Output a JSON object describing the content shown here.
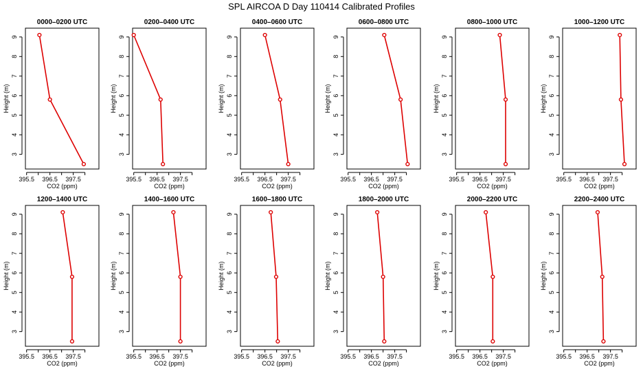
{
  "figure": {
    "title": "SPL AIRCOA D  Day 110414  Calibrated Profiles",
    "colors": {
      "line": "#dd0000",
      "axis": "#000000",
      "background": "#ffffff"
    }
  },
  "chart_data": [
    {
      "type": "line",
      "title": "0000–0200 UTC",
      "xlabel": "CO2 (ppm)",
      "ylabel": "Height (m)",
      "xticks": [
        395.5,
        396.5,
        397.5
      ],
      "yticks": [
        3,
        4,
        5,
        6,
        7,
        8,
        9
      ],
      "x": [
        397.95,
        396.5,
        396.05
      ],
      "y": [
        2.5,
        5.8,
        9.1
      ]
    },
    {
      "type": "line",
      "title": "0200–0400 UTC",
      "xlabel": "CO2 (ppm)",
      "ylabel": "Height (m)",
      "xticks": [
        395.5,
        396.5,
        397.5
      ],
      "yticks": [
        3,
        4,
        5,
        6,
        7,
        8,
        9
      ],
      "x": [
        396.75,
        396.65,
        395.5
      ],
      "y": [
        2.5,
        5.8,
        9.1
      ]
    },
    {
      "type": "line",
      "title": "0400–0600 UTC",
      "xlabel": "CO2 (ppm)",
      "ylabel": "Height (m)",
      "xticks": [
        395.5,
        396.5,
        397.5
      ],
      "yticks": [
        3,
        4,
        5,
        6,
        7,
        8,
        9
      ],
      "x": [
        397.5,
        397.15,
        396.5
      ],
      "y": [
        2.5,
        5.8,
        9.1
      ]
    },
    {
      "type": "line",
      "title": "0600–0800 UTC",
      "xlabel": "CO2 (ppm)",
      "ylabel": "Height (m)",
      "xticks": [
        395.5,
        396.5,
        397.5
      ],
      "yticks": [
        3,
        4,
        5,
        6,
        7,
        8,
        9
      ],
      "x": [
        398.05,
        397.75,
        397.05
      ],
      "y": [
        2.5,
        5.8,
        9.1
      ]
    },
    {
      "type": "line",
      "title": "0800–1000 UTC",
      "xlabel": "CO2 (ppm)",
      "ylabel": "Height (m)",
      "xticks": [
        395.5,
        396.5,
        397.5
      ],
      "yticks": [
        3,
        4,
        5,
        6,
        7,
        8,
        9
      ],
      "x": [
        397.6,
        397.6,
        397.35
      ],
      "y": [
        2.5,
        5.8,
        9.1
      ]
    },
    {
      "type": "line",
      "title": "1000–1200 UTC",
      "xlabel": "CO2 (ppm)",
      "ylabel": "Height (m)",
      "xticks": [
        395.5,
        396.5,
        397.5
      ],
      "yticks": [
        3,
        4,
        5,
        6,
        7,
        8,
        9
      ],
      "x": [
        398.1,
        397.95,
        397.9
      ],
      "y": [
        2.5,
        5.8,
        9.1
      ]
    },
    {
      "type": "line",
      "title": "1200–1400 UTC",
      "xlabel": "CO2 (ppm)",
      "ylabel": "Height (m)",
      "xticks": [
        395.5,
        396.5,
        397.5
      ],
      "yticks": [
        3,
        4,
        5,
        6,
        7,
        8,
        9
      ],
      "x": [
        397.45,
        397.45,
        397.05
      ],
      "y": [
        2.5,
        5.8,
        9.1
      ]
    },
    {
      "type": "line",
      "title": "1400–1600 UTC",
      "xlabel": "CO2 (ppm)",
      "ylabel": "Height (m)",
      "xticks": [
        395.5,
        396.5,
        397.5
      ],
      "yticks": [
        3,
        4,
        5,
        6,
        7,
        8,
        9
      ],
      "x": [
        397.5,
        397.5,
        397.2
      ],
      "y": [
        2.5,
        5.8,
        9.1
      ]
    },
    {
      "type": "line",
      "title": "1600–1800 UTC",
      "xlabel": "CO2 (ppm)",
      "ylabel": "Height (m)",
      "xticks": [
        395.5,
        396.5,
        397.5
      ],
      "yticks": [
        3,
        4,
        5,
        6,
        7,
        8,
        9
      ],
      "x": [
        397.05,
        396.98,
        396.75
      ],
      "y": [
        2.5,
        5.8,
        9.1
      ]
    },
    {
      "type": "line",
      "title": "1800–2000 UTC",
      "xlabel": "CO2 (ppm)",
      "ylabel": "Height (m)",
      "xticks": [
        395.5,
        396.5,
        397.5
      ],
      "yticks": [
        3,
        4,
        5,
        6,
        7,
        8,
        9
      ],
      "x": [
        397.05,
        397.0,
        396.75
      ],
      "y": [
        2.5,
        5.8,
        9.1
      ]
    },
    {
      "type": "line",
      "title": "2000–2200 UTC",
      "xlabel": "CO2 (ppm)",
      "ylabel": "Height (m)",
      "xticks": [
        395.5,
        396.5,
        397.5
      ],
      "yticks": [
        3,
        4,
        5,
        6,
        7,
        8,
        9
      ],
      "x": [
        397.05,
        397.05,
        396.75
      ],
      "y": [
        2.5,
        5.8,
        9.1
      ]
    },
    {
      "type": "line",
      "title": "2200–2400 UTC",
      "xlabel": "CO2 (ppm)",
      "ylabel": "Height (m)",
      "xticks": [
        395.5,
        396.5,
        397.5
      ],
      "yticks": [
        3,
        4,
        5,
        6,
        7,
        8,
        9
      ],
      "x": [
        397.2,
        397.15,
        396.95
      ],
      "y": [
        2.5,
        5.8,
        9.1
      ]
    }
  ]
}
